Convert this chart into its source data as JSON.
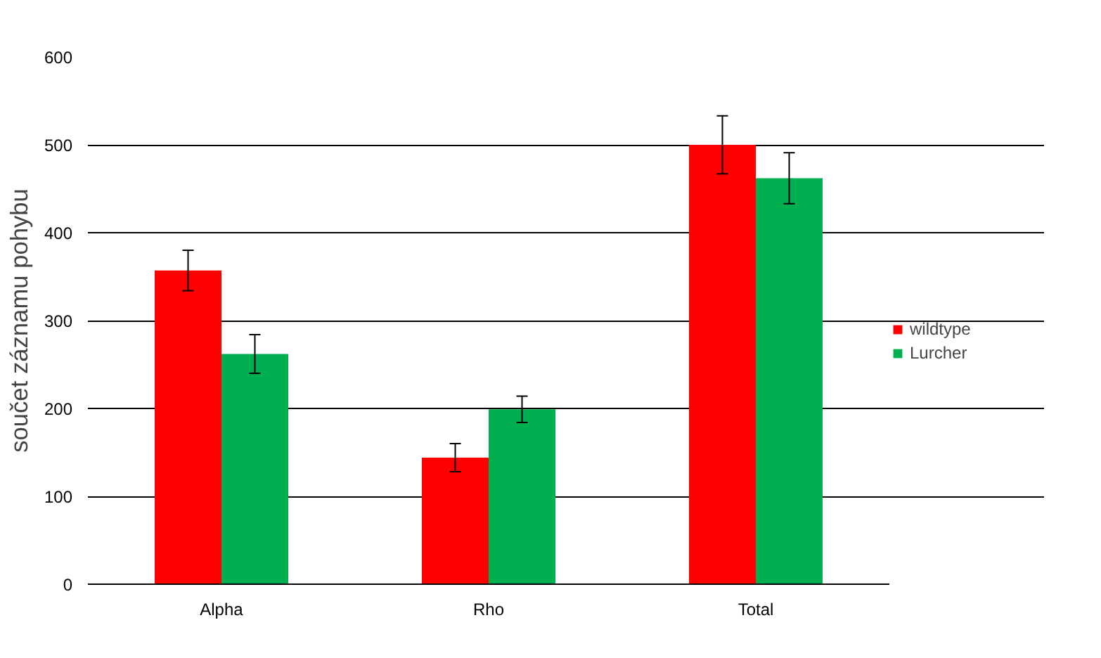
{
  "chart_data": {
    "type": "bar",
    "ylabel": "součet záznamu pohybu",
    "categories": [
      "Alpha",
      "Rho",
      "Total"
    ],
    "series": [
      {
        "name": "wildtype",
        "color": "#ff0000",
        "values": [
          357,
          144,
          500
        ],
        "errors": [
          23,
          16,
          33
        ]
      },
      {
        "name": "Lurcher",
        "color": "#00b050",
        "values": [
          262,
          199,
          462
        ],
        "errors": [
          22,
          15,
          29
        ]
      }
    ],
    "ylim": [
      0,
      600
    ],
    "yticks": [
      0,
      100,
      200,
      300,
      400,
      500,
      600
    ],
    "grid": "y",
    "legend": "right"
  }
}
